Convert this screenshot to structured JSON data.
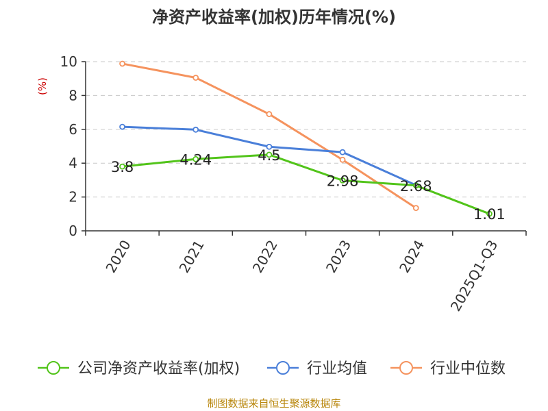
{
  "chart_data": {
    "type": "line",
    "title": "净资产收益率(加权)历年情况(%)",
    "ylabel": "(%)",
    "xlabel": "",
    "ylim": [
      0,
      10
    ],
    "yticks": [
      0,
      2,
      4,
      6,
      8,
      10
    ],
    "grid": true,
    "categories": [
      "2020",
      "2021",
      "2022",
      "2023",
      "2024",
      "2025Q1-Q3"
    ],
    "series": [
      {
        "name": "公司净资产收益率(加权)",
        "color": "#52c41a",
        "values": [
          3.8,
          4.24,
          4.5,
          2.98,
          2.68,
          1.01
        ],
        "labels": [
          "3.8",
          "4.24",
          "4.5",
          "2.98",
          "2.68",
          "1.01"
        ]
      },
      {
        "name": "行业均值",
        "color": "#4a7fd9",
        "values": [
          6.15,
          5.98,
          4.97,
          4.65,
          2.7,
          null
        ],
        "labels": []
      },
      {
        "name": "行业中位数",
        "color": "#f5935e",
        "values": [
          9.88,
          9.05,
          6.9,
          4.2,
          1.35,
          null
        ],
        "labels": []
      }
    ],
    "legend_position": "bottom",
    "source": "制图数据来自恒生聚源数据库"
  }
}
